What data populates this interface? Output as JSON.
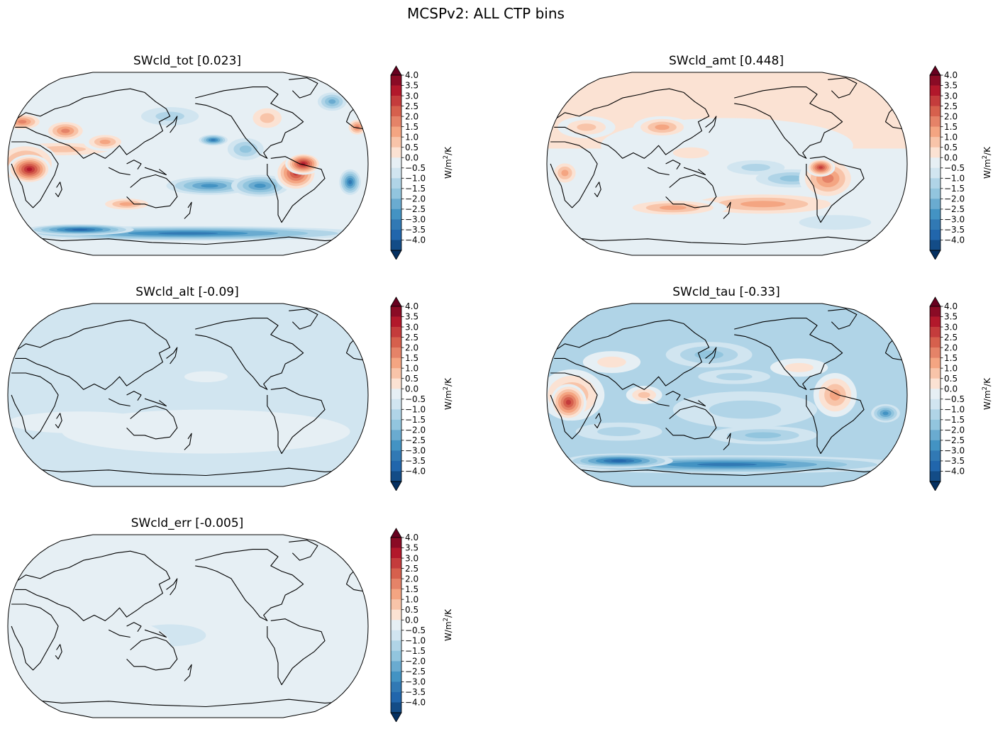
{
  "figure": {
    "title": "MCSPv2: ALL CTP bins"
  },
  "colorbar": {
    "label_prefix": "W/m",
    "label_sup": "2",
    "label_suffix": "/K",
    "levels": [
      4.0,
      3.5,
      3.0,
      2.5,
      2.0,
      1.5,
      1.0,
      0.5,
      0.0,
      -0.5,
      -1.0,
      -1.5,
      -2.0,
      -2.5,
      -3.0,
      -3.5,
      -4.0
    ],
    "tick_labels": [
      "4.0",
      "3.5",
      "3.0",
      "2.5",
      "2.0",
      "1.5",
      "1.0",
      "0.5",
      "0.0",
      "−0.5",
      "−1.0",
      "−1.5",
      "−2.0",
      "−2.5",
      "−3.0",
      "−3.5",
      "−4.0"
    ],
    "colors": [
      "#67001f",
      "#8a0b25",
      "#b2182b",
      "#c43c3c",
      "#d6604d",
      "#e58368",
      "#f4a582",
      "#f8c4a9",
      "#fbe2d3",
      "#e6eff4",
      "#d1e5f0",
      "#b0d4e7",
      "#92c5de",
      "#6aabd0",
      "#4393c3",
      "#3179b4",
      "#2166ac",
      "#134c87",
      "#053061"
    ],
    "extend": "both"
  },
  "chart_data": [
    {
      "type": "heatmap",
      "id": "SWcld_tot",
      "title": "SWcld_tot [0.023]",
      "global_mean": 0.023,
      "projection": "Robinson (Pacific-centered)",
      "vmin": -4.0,
      "vmax": 4.0,
      "step": 0.5,
      "notes_regions": [
        {
          "region": "tropical Africa",
          "value": 4.0
        },
        {
          "region": "Amazon",
          "value": 3.5
        },
        {
          "region": "central equatorial Pacific",
          "value": -2.5
        },
        {
          "region": "Southern Ocean",
          "value": -3.0
        }
      ]
    },
    {
      "type": "heatmap",
      "id": "SWcld_amt",
      "title": "SWcld_amt [0.448]",
      "global_mean": 0.448,
      "projection": "Robinson (Pacific-centered)",
      "vmin": -4.0,
      "vmax": 4.0,
      "step": 0.5,
      "notes_regions": [
        {
          "region": "Amazon",
          "value": 3.0
        },
        {
          "region": "South Pacific mid-latitudes",
          "value": 2.0
        },
        {
          "region": "eastern equatorial Pacific",
          "value": -1.5
        }
      ]
    },
    {
      "type": "heatmap",
      "id": "SWcld_alt",
      "title": "SWcld_alt [-0.09]",
      "global_mean": -0.09,
      "projection": "Robinson (Pacific-centered)",
      "vmin": -4.0,
      "vmax": 4.0,
      "step": 0.5,
      "notes_regions": [
        {
          "region": "global",
          "value": -0.1
        }
      ]
    },
    {
      "type": "heatmap",
      "id": "SWcld_tau",
      "title": "SWcld_tau [-0.33]",
      "global_mean": -0.33,
      "projection": "Robinson (Pacific-centered)",
      "vmin": -4.0,
      "vmax": 4.0,
      "step": 0.5,
      "notes_regions": [
        {
          "region": "tropical Africa",
          "value": 3.5
        },
        {
          "region": "Brazil",
          "value": 2.0
        },
        {
          "region": "Southern Ocean",
          "value": -3.0
        },
        {
          "region": "North Pacific",
          "value": -1.0
        }
      ]
    },
    {
      "type": "heatmap",
      "id": "SWcld_err",
      "title": "SWcld_err [-0.005]",
      "global_mean": -0.005,
      "projection": "Robinson (Pacific-centered)",
      "vmin": -4.0,
      "vmax": 4.0,
      "step": 0.5,
      "notes_regions": [
        {
          "region": "global",
          "value": 0.0
        }
      ]
    }
  ]
}
